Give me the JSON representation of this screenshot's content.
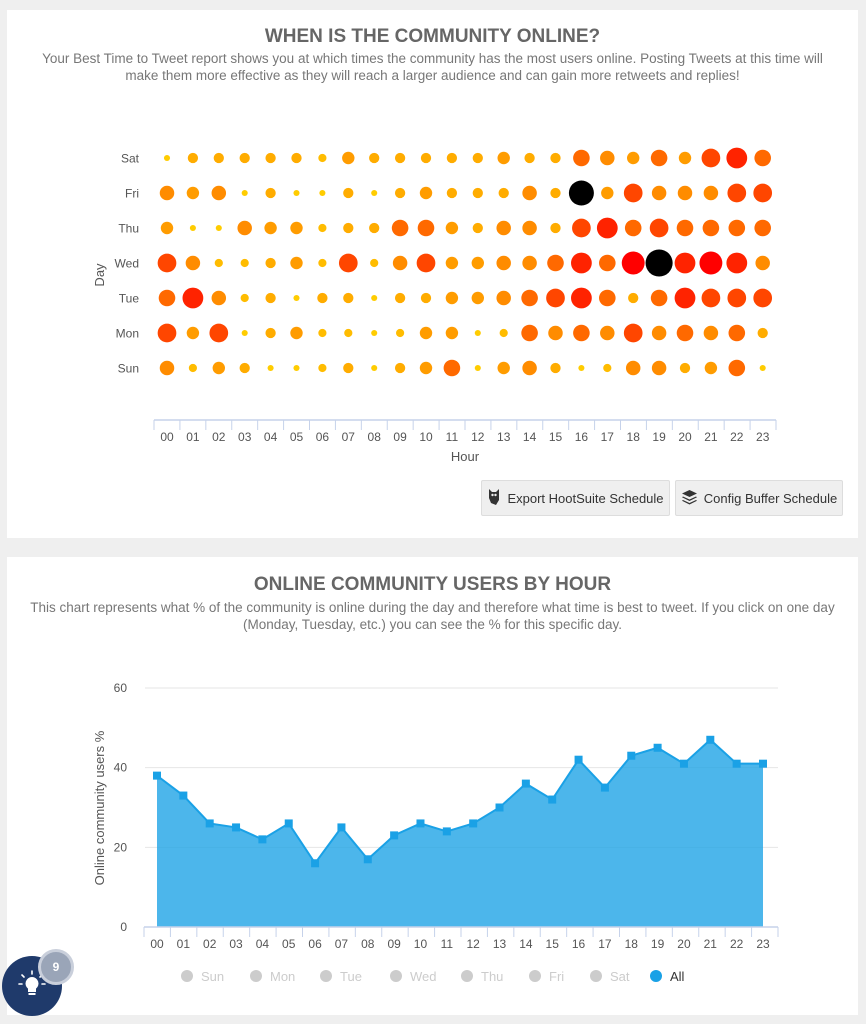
{
  "bubble_section": {
    "title": "WHEN IS THE COMMUNITY ONLINE?",
    "description": "Your Best Time to Tweet report shows you at which times the community has the most users online. Posting Tweets at this time will make them more effective as they will reach a larger audience and can gain more retweets and replies!",
    "buttons": {
      "hootsuite": {
        "label": "Export HootSuite Schedule",
        "icon": "owl-icon"
      },
      "buffer": {
        "label": "Config Buffer Schedule",
        "icon": "layers-icon"
      }
    }
  },
  "line_section": {
    "title": "ONLINE COMMUNITY USERS BY HOUR",
    "description": "This chart represents what % of the community is online during the day and therefore what time is best to tweet. If you click on one day (Monday, Tuesday, etc.) you can see the % for this specific day."
  },
  "fab": {
    "icon": "lightbulb-icon",
    "badge": "9",
    "color": "#1f3a6b"
  },
  "chart_data": [
    {
      "type": "scatter",
      "subtype": "bubble",
      "xlabel": "Hour",
      "ylabel": "Day",
      "x_categories": [
        "00",
        "01",
        "02",
        "03",
        "04",
        "05",
        "06",
        "07",
        "08",
        "09",
        "10",
        "11",
        "12",
        "13",
        "14",
        "15",
        "16",
        "17",
        "18",
        "19",
        "20",
        "21",
        "22",
        "23"
      ],
      "y_categories": [
        "Sat",
        "Fri",
        "Thu",
        "Wed",
        "Tue",
        "Mon",
        "Sun"
      ],
      "value_scale": "relative activity level 1-11 (estimated from bubble size)",
      "colors": {
        "low": "#ffcc00",
        "mid": "#ff8c00",
        "high": "#ff0000",
        "best": "#000000"
      },
      "highlighted": [
        {
          "day": "Fri",
          "hour": "16"
        },
        {
          "day": "Wed",
          "hour": "19"
        }
      ],
      "values": {
        "Sat": [
          1,
          3,
          3,
          3,
          3,
          3,
          2,
          4,
          3,
          3,
          3,
          3,
          3,
          4,
          3,
          3,
          6,
          5,
          4,
          6,
          4,
          7,
          8,
          6
        ],
        "Fri": [
          5,
          4,
          5,
          1,
          3,
          1,
          1,
          3,
          1,
          3,
          4,
          3,
          3,
          3,
          5,
          3,
          10,
          4,
          7,
          5,
          5,
          5,
          7,
          7
        ],
        "Thu": [
          4,
          1,
          1,
          5,
          4,
          4,
          2,
          3,
          3,
          6,
          6,
          4,
          3,
          5,
          5,
          3,
          7,
          8,
          6,
          7,
          6,
          6,
          6,
          6
        ],
        "Wed": [
          7,
          5,
          2,
          2,
          3,
          4,
          2,
          7,
          2,
          5,
          7,
          4,
          4,
          5,
          5,
          6,
          8,
          6,
          9,
          11,
          8,
          9,
          8,
          5
        ],
        "Tue": [
          6,
          8,
          5,
          2,
          3,
          1,
          3,
          3,
          1,
          3,
          3,
          4,
          4,
          5,
          6,
          7,
          8,
          6,
          3,
          6,
          8,
          7,
          7,
          7
        ],
        "Mon": [
          7,
          4,
          7,
          1,
          3,
          4,
          2,
          2,
          1,
          2,
          4,
          4,
          1,
          2,
          6,
          5,
          6,
          5,
          7,
          5,
          6,
          5,
          6,
          3
        ],
        "Sun": [
          5,
          2,
          4,
          3,
          1,
          1,
          2,
          3,
          1,
          3,
          4,
          6,
          1,
          4,
          5,
          3,
          1,
          2,
          5,
          5,
          3,
          4,
          6,
          1
        ]
      }
    },
    {
      "type": "area",
      "ylabel": "Online community users %",
      "xlabel": "",
      "ylim": [
        0,
        60
      ],
      "yticks": [
        "0",
        "20",
        "40",
        "60"
      ],
      "grid": true,
      "categories": [
        "00",
        "01",
        "02",
        "03",
        "04",
        "05",
        "06",
        "07",
        "08",
        "09",
        "10",
        "11",
        "12",
        "13",
        "14",
        "15",
        "16",
        "17",
        "18",
        "19",
        "20",
        "21",
        "22",
        "23"
      ],
      "series": [
        {
          "name": "All",
          "color": "#1aa1e6",
          "values": [
            38,
            33,
            26,
            25,
            22,
            26,
            16,
            25,
            17,
            23,
            26,
            24,
            26,
            30,
            36,
            32,
            42,
            35,
            43,
            45,
            41,
            47,
            41,
            41
          ]
        }
      ],
      "legend": {
        "placement": "bottom",
        "items": [
          {
            "label": "Sun",
            "active": false
          },
          {
            "label": "Mon",
            "active": false
          },
          {
            "label": "Tue",
            "active": false
          },
          {
            "label": "Wed",
            "active": false
          },
          {
            "label": "Thu",
            "active": false
          },
          {
            "label": "Fri",
            "active": false
          },
          {
            "label": "Sat",
            "active": false
          },
          {
            "label": "All",
            "active": true
          }
        ],
        "inactive_color": "#cccccc"
      }
    }
  ]
}
